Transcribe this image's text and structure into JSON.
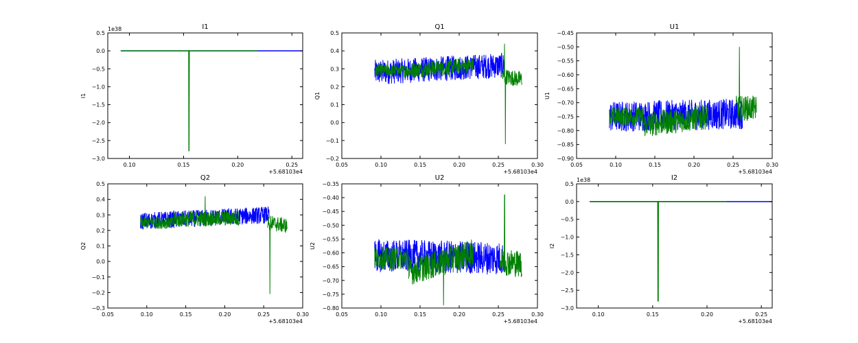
{
  "chart_data": [
    {
      "type": "line",
      "title": "I1",
      "ylabel": "I1",
      "xlim": [
        0.08,
        0.26
      ],
      "xticks": [
        "0.10",
        "0.15",
        "0.20",
        "0.25"
      ],
      "x_tick_values": [
        0.1,
        0.15,
        0.2,
        0.25
      ],
      "x_offset_label": "+5.68103e4",
      "ylim": [
        -3.0,
        0.5
      ],
      "yticks": [
        "0.5",
        "0.0",
        "−0.5",
        "−1.0",
        "−1.5",
        "−2.0",
        "−2.5",
        "−3.0"
      ],
      "y_tick_values": [
        0.5,
        0.0,
        -0.5,
        -1.0,
        -1.5,
        -2.0,
        -2.5,
        -3.0
      ],
      "y_scale_label": "1e38",
      "series": [
        {
          "color": "#0000ff",
          "x": [
            0.092,
            0.26
          ],
          "base": 0.0,
          "noise": 0.0,
          "spikes": []
        },
        {
          "color": "#008000",
          "x": [
            0.092,
            0.218
          ],
          "base": 0.0,
          "noise": 0.0,
          "spikes": [
            [
              0.155,
              -2.8
            ]
          ]
        }
      ]
    },
    {
      "type": "line",
      "title": "Q1",
      "ylabel": "Q1",
      "xlim": [
        0.05,
        0.3
      ],
      "xticks": [
        "0.05",
        "0.10",
        "0.15",
        "0.20",
        "0.25",
        "0.30"
      ],
      "x_tick_values": [
        0.05,
        0.1,
        0.15,
        0.2,
        0.25,
        0.3
      ],
      "x_offset_label": "+5.68103e4",
      "ylim": [
        -0.2,
        0.5
      ],
      "yticks": [
        "0.5",
        "0.4",
        "0.3",
        "0.2",
        "0.1",
        "0.0",
        "−0.1",
        "−0.2"
      ],
      "y_tick_values": [
        0.5,
        0.4,
        0.3,
        0.2,
        0.1,
        0.0,
        -0.1,
        -0.2
      ],
      "y_scale_label": "",
      "series": [
        {
          "color": "#0000ff",
          "x": [
            0.092,
            0.258
          ],
          "base": [
            0.28,
            0.32
          ],
          "noise": 0.07,
          "spikes": []
        },
        {
          "color": "#008000",
          "x": [
            0.092,
            0.135
          ],
          "base": [
            0.29,
            0.29
          ],
          "noise": 0.035,
          "spikes": []
        },
        {
          "color": "#008000",
          "x": [
            0.135,
            0.218
          ],
          "base": [
            0.29,
            0.32
          ],
          "noise": 0.045,
          "spikes": []
        },
        {
          "color": "#008000",
          "x": [
            0.255,
            0.28
          ],
          "base": [
            0.26,
            0.24
          ],
          "noise": 0.045,
          "spikes": [
            [
              0.258,
              0.44
            ],
            [
              0.259,
              -0.12
            ]
          ]
        }
      ]
    },
    {
      "type": "line",
      "title": "U1",
      "ylabel": "U1",
      "xlim": [
        0.05,
        0.3
      ],
      "xticks": [
        "0.05",
        "0.10",
        "0.15",
        "0.20",
        "0.25",
        "0.30"
      ],
      "x_tick_values": [
        0.05,
        0.1,
        0.15,
        0.2,
        0.25,
        0.3
      ],
      "x_offset_label": "+5.68103e4",
      "ylim": [
        -0.9,
        -0.45
      ],
      "yticks": [
        "−0.45",
        "−0.50",
        "−0.55",
        "−0.60",
        "−0.65",
        "−0.70",
        "−0.75",
        "−0.80",
        "−0.85",
        "−0.90"
      ],
      "y_tick_values": [
        -0.45,
        -0.5,
        -0.55,
        -0.6,
        -0.65,
        -0.7,
        -0.75,
        -0.8,
        -0.85,
        -0.9
      ],
      "y_scale_label": "",
      "series": [
        {
          "color": "#0000ff",
          "x": [
            0.092,
            0.262
          ],
          "base": [
            -0.75,
            -0.74
          ],
          "noise": 0.055,
          "spikes": []
        },
        {
          "color": "#008000",
          "x": [
            0.092,
            0.135
          ],
          "base": [
            -0.75,
            -0.75
          ],
          "noise": 0.035,
          "spikes": []
        },
        {
          "color": "#008000",
          "x": [
            0.135,
            0.218
          ],
          "base": [
            -0.78,
            -0.75
          ],
          "noise": 0.045,
          "spikes": []
        },
        {
          "color": "#008000",
          "x": [
            0.254,
            0.28
          ],
          "base": [
            -0.72,
            -0.72
          ],
          "noise": 0.045,
          "spikes": [
            [
              0.258,
              -0.5
            ]
          ]
        }
      ]
    },
    {
      "type": "line",
      "title": "Q2",
      "ylabel": "Q2",
      "xlim": [
        0.05,
        0.3
      ],
      "xticks": [
        "0.05",
        "0.10",
        "0.15",
        "0.20",
        "0.25",
        "0.30"
      ],
      "x_tick_values": [
        0.05,
        0.1,
        0.15,
        0.2,
        0.25,
        0.3
      ],
      "x_offset_label": "+5.68103e4",
      "ylim": [
        -0.3,
        0.5
      ],
      "yticks": [
        "0.5",
        "0.4",
        "0.3",
        "0.2",
        "0.1",
        "0.0",
        "−0.1",
        "−0.2",
        "−0.3"
      ],
      "y_tick_values": [
        0.5,
        0.4,
        0.3,
        0.2,
        0.1,
        0.0,
        -0.1,
        -0.2,
        -0.3
      ],
      "y_scale_label": "",
      "series": [
        {
          "color": "#0000ff",
          "x": [
            0.092,
            0.257
          ],
          "base": [
            0.26,
            0.3
          ],
          "noise": 0.055,
          "spikes": []
        },
        {
          "color": "#008000",
          "x": [
            0.092,
            0.135
          ],
          "base": [
            0.25,
            0.25
          ],
          "noise": 0.04,
          "spikes": []
        },
        {
          "color": "#008000",
          "x": [
            0.135,
            0.218
          ],
          "base": [
            0.27,
            0.28
          ],
          "noise": 0.05,
          "spikes": [
            [
              0.175,
              0.42
            ]
          ]
        },
        {
          "color": "#008000",
          "x": [
            0.255,
            0.28
          ],
          "base": [
            0.25,
            0.23
          ],
          "noise": 0.05,
          "spikes": [
            [
              0.258,
              -0.21
            ]
          ]
        }
      ]
    },
    {
      "type": "line",
      "title": "U2",
      "ylabel": "U2",
      "xlim": [
        0.05,
        0.3
      ],
      "xticks": [
        "0.05",
        "0.10",
        "0.15",
        "0.20",
        "0.25",
        "0.30"
      ],
      "x_tick_values": [
        0.05,
        0.1,
        0.15,
        0.2,
        0.25,
        0.3
      ],
      "x_offset_label": "+5.68103e4",
      "ylim": [
        -0.8,
        -0.35
      ],
      "yticks": [
        "−0.35",
        "−0.40",
        "−0.45",
        "−0.50",
        "−0.55",
        "−0.60",
        "−0.65",
        "−0.70",
        "−0.75",
        "−0.80"
      ],
      "y_tick_values": [
        -0.35,
        -0.4,
        -0.45,
        -0.5,
        -0.55,
        -0.6,
        -0.65,
        -0.7,
        -0.75,
        -0.8
      ],
      "y_scale_label": "",
      "series": [
        {
          "color": "#0000ff",
          "x": [
            0.092,
            0.258
          ],
          "base": [
            -0.61,
            -0.62
          ],
          "noise": 0.06,
          "spikes": []
        },
        {
          "color": "#008000",
          "x": [
            0.092,
            0.135
          ],
          "base": [
            -0.62,
            -0.62
          ],
          "noise": 0.04,
          "spikes": []
        },
        {
          "color": "#008000",
          "x": [
            0.135,
            0.218
          ],
          "base": [
            -0.67,
            -0.6
          ],
          "noise": 0.05,
          "spikes": [
            [
              0.18,
              -0.79
            ]
          ]
        },
        {
          "color": "#008000",
          "x": [
            0.252,
            0.28
          ],
          "base": [
            -0.63,
            -0.64
          ],
          "noise": 0.05,
          "spikes": [
            [
              0.258,
              -0.39
            ]
          ]
        }
      ]
    },
    {
      "type": "line",
      "title": "I2",
      "ylabel": "I2",
      "xlim": [
        0.08,
        0.26
      ],
      "xticks": [
        "0.10",
        "0.15",
        "0.20",
        "0.25"
      ],
      "x_tick_values": [
        0.1,
        0.15,
        0.2,
        0.25
      ],
      "x_offset_label": "+5.68103e4",
      "ylim": [
        -3.0,
        0.5
      ],
      "yticks": [
        "0.5",
        "0.0",
        "−0.5",
        "−1.0",
        "−1.5",
        "−2.0",
        "−2.5",
        "−3.0"
      ],
      "y_tick_values": [
        0.5,
        0.0,
        -0.5,
        -1.0,
        -1.5,
        -2.0,
        -2.5,
        -3.0
      ],
      "y_scale_label": "1e38",
      "series": [
        {
          "color": "#0000ff",
          "x": [
            0.092,
            0.26
          ],
          "base": 0.0,
          "noise": 0.0,
          "spikes": []
        },
        {
          "color": "#008000",
          "x": [
            0.092,
            0.218
          ],
          "base": 0.0,
          "noise": 0.0,
          "spikes": [
            [
              0.155,
              -2.8
            ]
          ]
        }
      ]
    }
  ]
}
